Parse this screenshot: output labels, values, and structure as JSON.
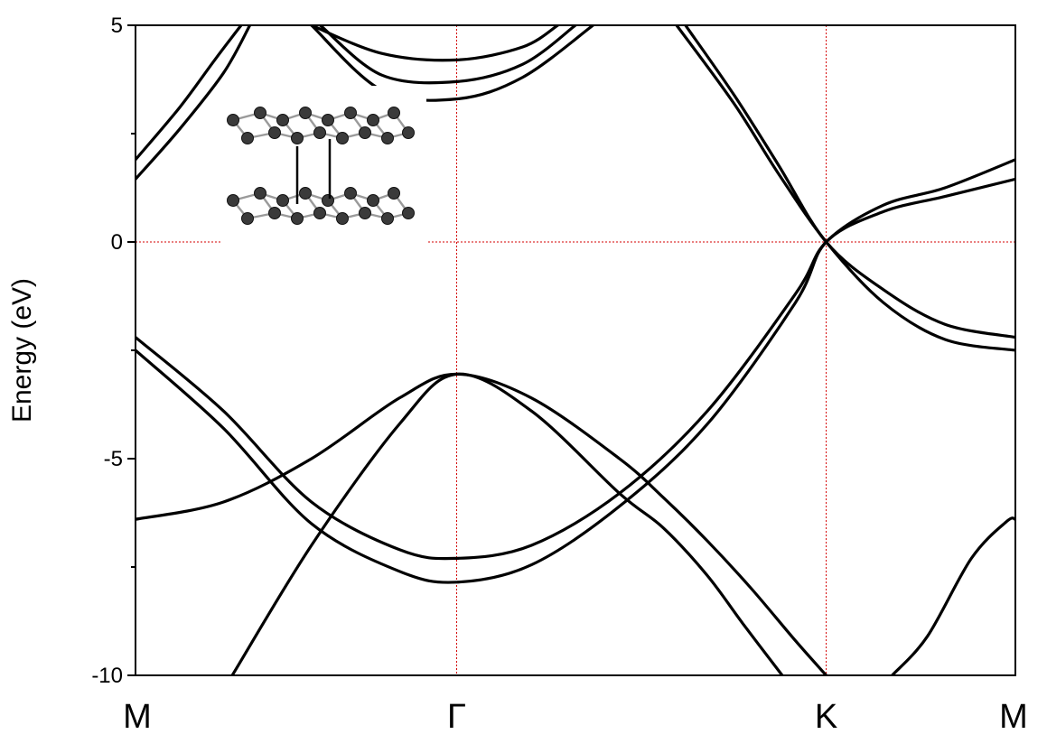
{
  "chart_data": {
    "type": "line",
    "ylabel": "Energy (eV)",
    "ylim": [
      -10,
      5
    ],
    "yticks": [
      5,
      0,
      -5,
      -10
    ],
    "ytick_labels": [
      "5",
      "0",
      "-5",
      "-10"
    ],
    "xlim": [
      0,
      1
    ],
    "kpoints": [
      {
        "label": "M",
        "x": 0
      },
      {
        "label": "Γ",
        "x": 0.365
      },
      {
        "label": "K",
        "x": 0.785
      },
      {
        "label": "M",
        "x": 1
      }
    ],
    "reference_lines": {
      "fermi_level": 0,
      "vertical_kpoints": [
        "Γ",
        "K"
      ],
      "color": "#d40000"
    },
    "series": [
      {
        "values": [
          [
            0,
            -6.4
          ],
          [
            0.1,
            -6.0
          ],
          [
            0.2,
            -5.0
          ],
          [
            0.3,
            -3.6
          ],
          [
            0.365,
            -3.05
          ],
          [
            0.45,
            -3.6
          ],
          [
            0.55,
            -5.0
          ],
          [
            0.6,
            -5.9
          ],
          [
            0.65,
            -6.9
          ],
          [
            0.7,
            -8.0
          ],
          [
            0.75,
            -9.2
          ],
          [
            0.785,
            -10.0
          ]
        ]
      },
      {
        "values": [
          [
            0.11,
            -10.0
          ],
          [
            0.2,
            -7.0
          ],
          [
            0.3,
            -4.2
          ],
          [
            0.365,
            -3.05
          ],
          [
            0.45,
            -3.9
          ],
          [
            0.55,
            -5.8
          ],
          [
            0.6,
            -6.6
          ],
          [
            0.65,
            -7.7
          ],
          [
            0.69,
            -8.8
          ],
          [
            0.735,
            -10.0
          ]
        ]
      },
      {
        "values": [
          [
            0,
            -2.2
          ],
          [
            0.1,
            -3.9
          ],
          [
            0.2,
            -6.0
          ],
          [
            0.3,
            -7.1
          ],
          [
            0.365,
            -7.3
          ],
          [
            0.45,
            -7.0
          ],
          [
            0.55,
            -5.8
          ],
          [
            0.65,
            -3.9
          ],
          [
            0.75,
            -1.2
          ],
          [
            0.785,
            0.0
          ],
          [
            0.85,
            0.85
          ],
          [
            0.92,
            1.25
          ],
          [
            1,
            1.9
          ]
        ]
      },
      {
        "values": [
          [
            0,
            -2.5
          ],
          [
            0.1,
            -4.3
          ],
          [
            0.2,
            -6.5
          ],
          [
            0.3,
            -7.6
          ],
          [
            0.365,
            -7.85
          ],
          [
            0.45,
            -7.45
          ],
          [
            0.55,
            -6.1
          ],
          [
            0.65,
            -4.2
          ],
          [
            0.75,
            -1.4
          ],
          [
            0.785,
            0.0
          ],
          [
            0.85,
            0.7
          ],
          [
            0.92,
            1.05
          ],
          [
            1,
            1.45
          ]
        ]
      },
      {
        "values": [
          [
            0,
            1.9
          ],
          [
            0.05,
            3.1
          ],
          [
            0.09,
            4.2
          ],
          [
            0.12,
            5.0
          ]
        ]
      },
      {
        "values": [
          [
            0,
            1.45
          ],
          [
            0.05,
            2.6
          ],
          [
            0.1,
            3.9
          ],
          [
            0.13,
            5.0
          ]
        ]
      },
      {
        "values": [
          [
            0.2,
            5.0
          ],
          [
            0.28,
            4.35
          ],
          [
            0.365,
            4.2
          ],
          [
            0.44,
            4.5
          ],
          [
            0.48,
            5.0
          ]
        ]
      },
      {
        "values": [
          [
            0.21,
            5.0
          ],
          [
            0.28,
            3.85
          ],
          [
            0.365,
            3.7
          ],
          [
            0.44,
            4.1
          ],
          [
            0.5,
            5.0
          ]
        ]
      },
      {
        "values": [
          [
            0.2,
            5.0
          ],
          [
            0.28,
            3.5
          ],
          [
            0.365,
            3.3
          ],
          [
            0.44,
            3.8
          ],
          [
            0.52,
            5.0
          ]
        ]
      },
      {
        "values": [
          [
            0.625,
            5.0
          ],
          [
            0.68,
            3.4
          ],
          [
            0.73,
            1.8
          ],
          [
            0.785,
            0.0
          ],
          [
            0.85,
            -1.1
          ],
          [
            0.92,
            -1.9
          ],
          [
            1,
            -2.2
          ]
        ]
      },
      {
        "values": [
          [
            0.615,
            5.0
          ],
          [
            0.68,
            3.2
          ],
          [
            0.73,
            1.6
          ],
          [
            0.785,
            0.0
          ],
          [
            0.85,
            -1.4
          ],
          [
            0.92,
            -2.25
          ],
          [
            1,
            -2.5
          ]
        ]
      },
      {
        "values": [
          [
            0.86,
            -10.0
          ],
          [
            0.9,
            -9.1
          ],
          [
            0.95,
            -7.3
          ],
          [
            0.99,
            -6.45
          ],
          [
            1,
            -6.4
          ]
        ]
      }
    ]
  },
  "inset": {
    "image_label": "bilayer-graphene-structure"
  }
}
